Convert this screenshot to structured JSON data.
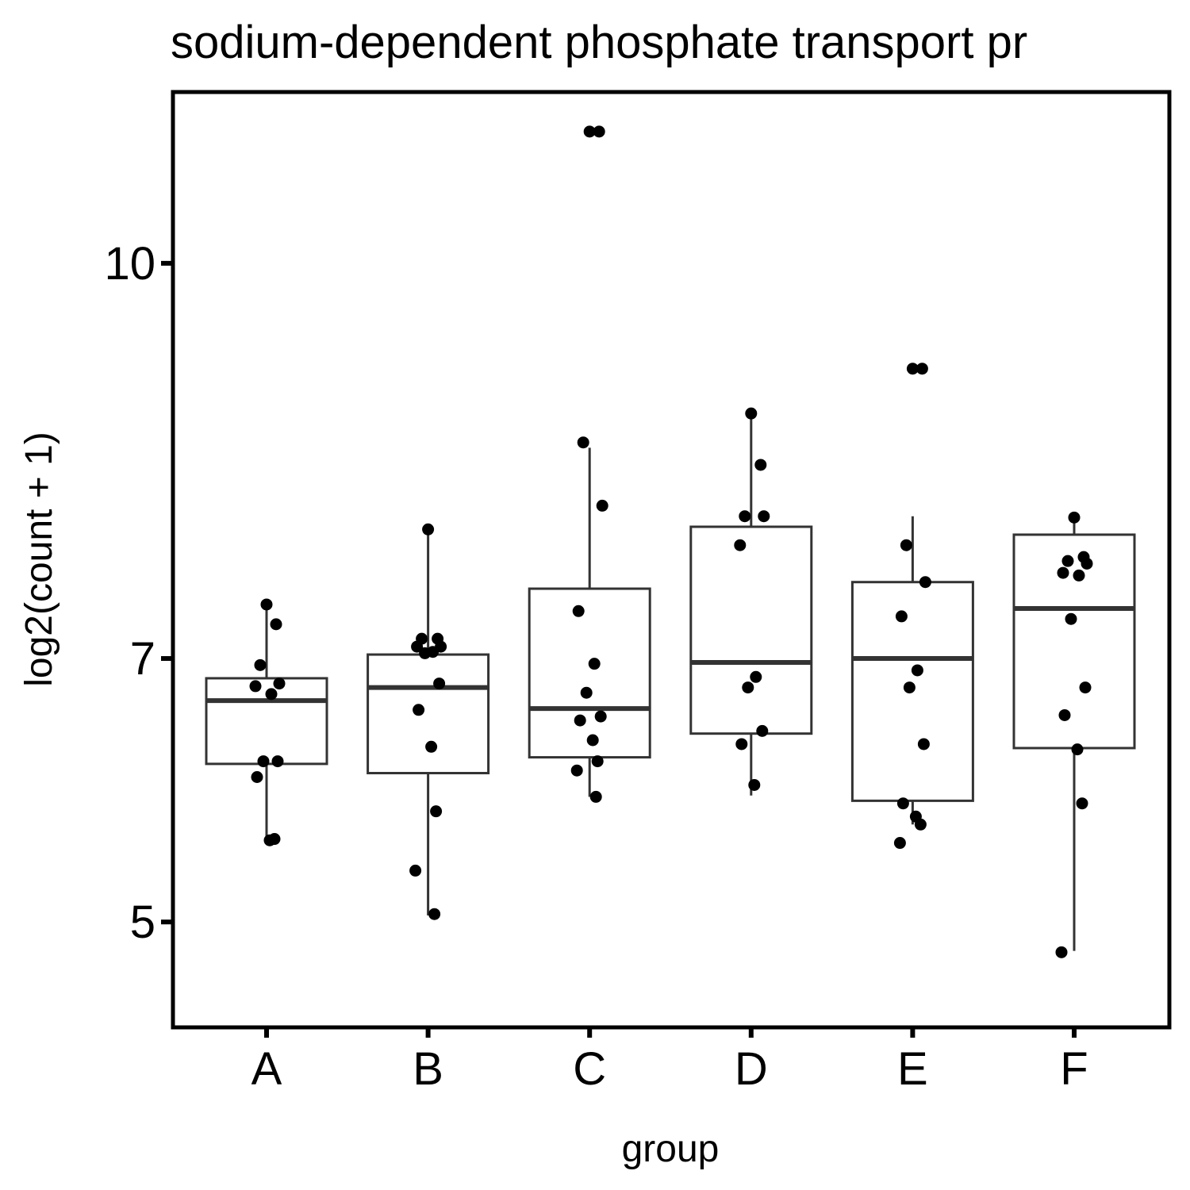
{
  "chart_data": {
    "type": "boxplot",
    "title": "sodium-dependent phosphate transport pr",
    "xlabel": "group",
    "ylabel": "log2(count + 1)",
    "categories": [
      "A",
      "B",
      "C",
      "D",
      "E",
      "F"
    ],
    "ylim": [
      4.2,
      11.3
    ],
    "yticks": [
      5,
      7,
      10
    ],
    "grid": false,
    "legend": "none",
    "colors": {
      "box_stroke": "#333333",
      "median": "#333333",
      "points": "#000000",
      "frame": "#000000"
    },
    "boxes": [
      {
        "group": "A",
        "whisker_low": 5.6,
        "q1": 6.2,
        "median": 6.68,
        "q3": 6.85,
        "whisker_high": 7.4
      },
      {
        "group": "B",
        "whisker_low": 5.05,
        "q1": 6.13,
        "median": 6.78,
        "q3": 7.03,
        "whisker_high": 7.95
      },
      {
        "group": "C",
        "whisker_low": 5.95,
        "q1": 6.25,
        "median": 6.62,
        "q3": 7.53,
        "whisker_high": 8.6
      },
      {
        "group": "D",
        "whisker_low": 5.96,
        "q1": 6.43,
        "median": 6.97,
        "q3": 8.0,
        "whisker_high": 8.86
      },
      {
        "group": "E",
        "whisker_low": 5.74,
        "q1": 5.92,
        "median": 7.0,
        "q3": 7.58,
        "whisker_high": 8.08
      },
      {
        "group": "F",
        "whisker_low": 4.78,
        "q1": 6.32,
        "median": 7.38,
        "q3": 7.94,
        "whisker_high": 8.09
      }
    ],
    "points": [
      {
        "group": "A",
        "y": [
          7.41,
          7.26,
          6.95,
          6.81,
          6.79,
          6.73,
          6.22,
          6.22,
          6.1,
          5.62,
          5.63
        ]
      },
      {
        "group": "B",
        "y": [
          7.98,
          7.15,
          7.15,
          7.09,
          7.09,
          7.05,
          7.04,
          6.81,
          6.61,
          6.33,
          5.84,
          5.39,
          5.06
        ]
      },
      {
        "group": "C",
        "y": [
          11.0,
          11.0,
          8.64,
          8.16,
          7.36,
          6.96,
          6.74,
          6.56,
          6.53,
          6.38,
          6.22,
          6.15,
          5.95
        ]
      },
      {
        "group": "D",
        "y": [
          8.86,
          8.47,
          8.08,
          8.08,
          7.86,
          6.86,
          6.78,
          6.45,
          6.35,
          6.04
        ]
      },
      {
        "group": "E",
        "y": [
          9.2,
          9.2,
          7.86,
          7.58,
          7.32,
          6.91,
          6.78,
          6.35,
          5.9,
          5.8,
          5.74,
          5.6
        ]
      },
      {
        "group": "F",
        "y": [
          8.07,
          7.77,
          7.74,
          7.72,
          7.65,
          7.63,
          7.3,
          6.78,
          6.57,
          6.31,
          5.9,
          4.77
        ]
      }
    ]
  }
}
